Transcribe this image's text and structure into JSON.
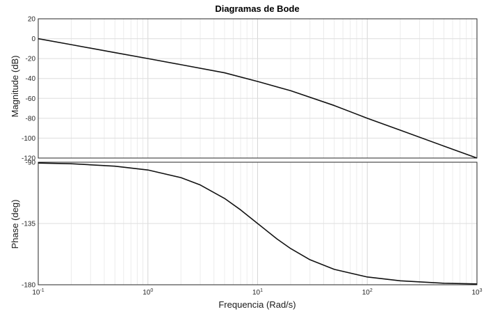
{
  "chart_data": [
    {
      "type": "line",
      "title": "Diagramas de Bode",
      "xlabel": "",
      "ylabel": "Magnitude (dB)",
      "xscale": "log",
      "xlim": [
        0.1,
        1000
      ],
      "ylim": [
        -120,
        20
      ],
      "yticks": [
        "20",
        "0",
        "-20",
        "-40",
        "-60",
        "-80",
        "-100",
        "-120"
      ],
      "grid": true,
      "series": [
        {
          "x": [
            0.1,
            0.2,
            0.5,
            1,
            2,
            5,
            10,
            20,
            50,
            100,
            200,
            500,
            1000
          ],
          "y": [
            0,
            -6,
            -14,
            -20,
            -26.1,
            -34.3,
            -43,
            -52.3,
            -67.2,
            -80,
            -92,
            -108,
            -120
          ]
        }
      ]
    },
    {
      "type": "line",
      "xlabel": "Frequencia (Rad/s)",
      "ylabel": "Phase (deg)",
      "xscale": "log",
      "xlim": [
        0.1,
        1000
      ],
      "ylim": [
        -180,
        -90
      ],
      "xticks": [
        "10-1",
        "100",
        "101",
        "102",
        "103"
      ],
      "yticks": [
        "-90",
        "-135",
        "-180"
      ],
      "grid": true,
      "series": [
        {
          "x": [
            0.1,
            0.2,
            0.5,
            1,
            2,
            3,
            5,
            7,
            10,
            15,
            20,
            30,
            50,
            100,
            200,
            500,
            1000
          ],
          "y": [
            -90.6,
            -91.1,
            -92.9,
            -95.7,
            -101.3,
            -106.7,
            -116.6,
            -125,
            -135,
            -146.3,
            -153.4,
            -161.6,
            -168.7,
            -174.3,
            -177.1,
            -178.9,
            -179.4
          ]
        }
      ]
    }
  ]
}
